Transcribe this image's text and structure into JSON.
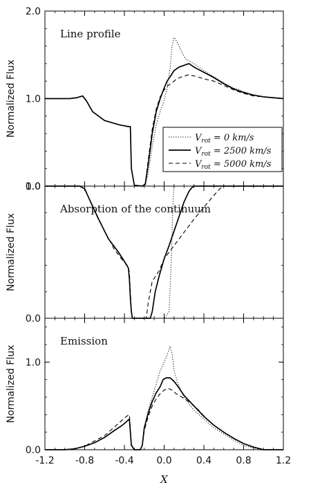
{
  "chart_data": [
    {
      "type": "line",
      "title": "Line profile",
      "xlabel": "",
      "ylabel": "Normalized Flux",
      "xlim": [
        -1.2,
        1.2
      ],
      "ylim": [
        0.0,
        2.0
      ],
      "yticks": [
        {
          "value": 0.0,
          "label": "0.0"
        },
        {
          "value": 1.0,
          "label": "1.0"
        },
        {
          "value": 2.0,
          "label": "2.0"
        }
      ],
      "xticks": [],
      "legend": {
        "placement": "center-right",
        "entries": [
          {
            "prefix": "V",
            "sub": "rot",
            "suffix": " = 0 km/s",
            "style": "dotted"
          },
          {
            "prefix": "V",
            "sub": "rot",
            "suffix": " = 2500 km/s",
            "style": "solid"
          },
          {
            "prefix": "V",
            "sub": "rot",
            "suffix": " = 5000 km/s",
            "style": "dashed"
          }
        ]
      },
      "series": [
        {
          "style": "dotted",
          "x": [
            -1.2,
            -0.95,
            -0.88,
            -0.82,
            -0.78,
            -0.72,
            -0.6,
            -0.45,
            -0.36,
            -0.34,
            -0.33,
            -0.3,
            -0.22,
            -0.19,
            -0.16,
            -0.12,
            -0.08,
            -0.04,
            0.0,
            0.03,
            0.06,
            0.08,
            0.1,
            0.14,
            0.18,
            0.22,
            0.3,
            0.4,
            0.5,
            0.6,
            0.7,
            0.8,
            0.9,
            1.0,
            1.1,
            1.2
          ],
          "y": [
            1.0,
            1.0,
            1.01,
            1.03,
            0.97,
            0.85,
            0.75,
            0.7,
            0.68,
            0.68,
            0.2,
            0.01,
            0.0,
            0.02,
            0.15,
            0.45,
            0.7,
            0.85,
            0.98,
            1.12,
            1.35,
            1.6,
            1.7,
            1.63,
            1.52,
            1.45,
            1.4,
            1.32,
            1.25,
            1.18,
            1.12,
            1.08,
            1.04,
            1.02,
            1.01,
            1.0
          ]
        },
        {
          "style": "solid",
          "x": [
            -1.2,
            -0.95,
            -0.88,
            -0.82,
            -0.78,
            -0.72,
            -0.6,
            -0.45,
            -0.36,
            -0.34,
            -0.33,
            -0.3,
            -0.22,
            -0.19,
            -0.16,
            -0.12,
            -0.08,
            -0.04,
            0.0,
            0.03,
            0.06,
            0.1,
            0.15,
            0.2,
            0.25,
            0.3,
            0.35,
            0.4,
            0.5,
            0.6,
            0.7,
            0.8,
            0.9,
            1.0,
            1.1,
            1.2
          ],
          "y": [
            1.0,
            1.0,
            1.01,
            1.03,
            0.97,
            0.85,
            0.75,
            0.7,
            0.68,
            0.68,
            0.2,
            0.01,
            0.0,
            0.02,
            0.25,
            0.6,
            0.85,
            1.0,
            1.12,
            1.2,
            1.25,
            1.32,
            1.36,
            1.38,
            1.4,
            1.36,
            1.33,
            1.3,
            1.24,
            1.17,
            1.11,
            1.07,
            1.04,
            1.02,
            1.01,
            1.0
          ]
        },
        {
          "style": "dashed",
          "x": [
            -1.2,
            -0.95,
            -0.88,
            -0.82,
            -0.78,
            -0.72,
            -0.6,
            -0.45,
            -0.36,
            -0.34,
            -0.33,
            -0.3,
            -0.22,
            -0.19,
            -0.16,
            -0.12,
            -0.08,
            -0.04,
            0.0,
            0.04,
            0.08,
            0.12,
            0.18,
            0.24,
            0.3,
            0.36,
            0.42,
            0.5,
            0.6,
            0.7,
            0.8,
            0.9,
            1.0,
            1.1,
            1.2
          ],
          "y": [
            1.0,
            1.0,
            1.01,
            1.03,
            0.97,
            0.85,
            0.75,
            0.7,
            0.68,
            0.68,
            0.2,
            0.01,
            0.0,
            0.03,
            0.3,
            0.65,
            0.88,
            1.02,
            1.1,
            1.15,
            1.18,
            1.22,
            1.25,
            1.27,
            1.26,
            1.24,
            1.22,
            1.2,
            1.15,
            1.1,
            1.06,
            1.03,
            1.02,
            1.01,
            1.0
          ]
        }
      ]
    },
    {
      "type": "line",
      "title": "Absorption of the continuum",
      "xlabel": "",
      "ylabel": "Normalized Flux",
      "xlim": [
        -1.2,
        1.2
      ],
      "ylim": [
        0.0,
        1.0
      ],
      "yticks": [
        {
          "value": 0.0,
          "label": "0.0"
        },
        {
          "value": 1.0,
          "label": "1.0"
        }
      ],
      "xticks": [],
      "series": [
        {
          "style": "dotted",
          "x": [
            -1.2,
            -0.85,
            -0.8,
            -0.74,
            -0.66,
            -0.56,
            -0.46,
            -0.4,
            -0.36,
            -0.35,
            -0.34,
            -0.33,
            -0.32,
            -0.1,
            -0.08,
            0.0,
            0.05,
            0.07,
            0.09,
            0.1,
            1.2
          ],
          "y": [
            1.0,
            1.0,
            0.98,
            0.88,
            0.75,
            0.6,
            0.5,
            0.43,
            0.38,
            0.3,
            0.15,
            0.05,
            0.0,
            0.0,
            0.0,
            0.0,
            0.05,
            0.4,
            0.9,
            1.0,
            1.0
          ]
        },
        {
          "style": "solid",
          "x": [
            -1.2,
            -0.85,
            -0.8,
            -0.74,
            -0.66,
            -0.56,
            -0.46,
            -0.4,
            -0.36,
            -0.35,
            -0.34,
            -0.33,
            -0.32,
            -0.14,
            -0.12,
            -0.09,
            -0.05,
            0.0,
            0.05,
            0.1,
            0.15,
            0.2,
            0.25,
            0.28,
            0.3,
            1.2
          ],
          "y": [
            1.0,
            1.0,
            0.98,
            0.88,
            0.75,
            0.6,
            0.5,
            0.43,
            0.38,
            0.3,
            0.15,
            0.05,
            0.0,
            0.0,
            0.05,
            0.2,
            0.32,
            0.45,
            0.55,
            0.66,
            0.77,
            0.88,
            0.96,
            0.99,
            1.0,
            1.0
          ]
        },
        {
          "style": "dashed",
          "x": [
            -1.2,
            -0.85,
            -0.8,
            -0.72,
            -0.6,
            -0.5,
            -0.42,
            -0.37,
            -0.35,
            -0.34,
            -0.33,
            -0.32,
            -0.18,
            -0.16,
            -0.12,
            -0.05,
            0.0,
            0.05,
            0.12,
            0.2,
            0.3,
            0.4,
            0.5,
            0.56,
            0.58,
            0.6,
            1.2
          ],
          "y": [
            1.0,
            1.0,
            0.98,
            0.85,
            0.66,
            0.52,
            0.44,
            0.4,
            0.35,
            0.2,
            0.06,
            0.0,
            0.0,
            0.12,
            0.28,
            0.36,
            0.45,
            0.5,
            0.57,
            0.65,
            0.75,
            0.84,
            0.93,
            0.98,
            0.99,
            1.0,
            1.0
          ]
        }
      ]
    },
    {
      "type": "line",
      "title": "Emission",
      "xlabel": "X",
      "ylabel": "Normalized Flux",
      "xlim": [
        -1.2,
        1.2
      ],
      "ylim": [
        0.0,
        1.5
      ],
      "yticks": [
        {
          "value": 0.0,
          "label": "0.0"
        },
        {
          "value": 1.0,
          "label": "1.0"
        }
      ],
      "xticks": [
        {
          "value": -1.2,
          "label": "-1.2"
        },
        {
          "value": -0.8,
          "label": "-0.8"
        },
        {
          "value": -0.4,
          "label": "-0.4"
        },
        {
          "value": 0.0,
          "label": "0.0"
        },
        {
          "value": 0.4,
          "label": "0.4"
        },
        {
          "value": 0.8,
          "label": "0.8"
        },
        {
          "value": 1.2,
          "label": "1.2"
        }
      ],
      "series": [
        {
          "style": "dotted",
          "x": [
            -1.2,
            -1.0,
            -0.9,
            -0.8,
            -0.7,
            -0.6,
            -0.5,
            -0.42,
            -0.38,
            -0.35,
            -0.34,
            -0.33,
            -0.3,
            -0.24,
            -0.22,
            -0.2,
            -0.16,
            -0.12,
            -0.08,
            -0.04,
            0.0,
            0.03,
            0.06,
            0.08,
            0.1,
            0.14,
            0.2,
            0.3,
            0.4,
            0.5,
            0.6,
            0.7,
            0.8,
            0.9,
            1.0,
            1.2
          ],
          "y": [
            0.0,
            0.0,
            0.01,
            0.04,
            0.08,
            0.14,
            0.22,
            0.28,
            0.32,
            0.35,
            0.2,
            0.05,
            0.0,
            0.0,
            0.05,
            0.25,
            0.45,
            0.6,
            0.75,
            0.9,
            1.0,
            1.08,
            1.18,
            1.1,
            0.9,
            0.75,
            0.6,
            0.45,
            0.35,
            0.25,
            0.18,
            0.11,
            0.05,
            0.02,
            0.0,
            0.0
          ]
        },
        {
          "style": "solid",
          "x": [
            -1.2,
            -1.0,
            -0.9,
            -0.8,
            -0.7,
            -0.6,
            -0.5,
            -0.42,
            -0.38,
            -0.35,
            -0.34,
            -0.33,
            -0.3,
            -0.24,
            -0.22,
            -0.2,
            -0.16,
            -0.12,
            -0.08,
            -0.04,
            -0.01,
            0.02,
            0.06,
            0.1,
            0.14,
            0.2,
            0.3,
            0.4,
            0.5,
            0.6,
            0.7,
            0.8,
            0.9,
            1.0,
            1.2
          ],
          "y": [
            0.0,
            0.0,
            0.01,
            0.04,
            0.08,
            0.14,
            0.22,
            0.28,
            0.32,
            0.35,
            0.2,
            0.05,
            0.0,
            0.0,
            0.05,
            0.25,
            0.42,
            0.55,
            0.65,
            0.72,
            0.8,
            0.82,
            0.82,
            0.78,
            0.72,
            0.62,
            0.5,
            0.38,
            0.28,
            0.2,
            0.13,
            0.07,
            0.03,
            0.0,
            0.0
          ]
        },
        {
          "style": "dashed",
          "x": [
            -1.2,
            -1.0,
            -0.9,
            -0.8,
            -0.7,
            -0.6,
            -0.5,
            -0.42,
            -0.38,
            -0.35,
            -0.34,
            -0.33,
            -0.3,
            -0.24,
            -0.22,
            -0.2,
            -0.16,
            -0.12,
            -0.08,
            -0.04,
            0.0,
            0.04,
            0.08,
            0.12,
            0.18,
            0.26,
            0.34,
            0.42,
            0.5,
            0.6,
            0.7,
            0.8,
            0.9,
            1.0,
            1.2
          ],
          "y": [
            0.0,
            0.0,
            0.01,
            0.04,
            0.1,
            0.16,
            0.26,
            0.34,
            0.38,
            0.4,
            0.24,
            0.06,
            0.0,
            0.0,
            0.05,
            0.22,
            0.38,
            0.5,
            0.58,
            0.64,
            0.68,
            0.7,
            0.68,
            0.64,
            0.6,
            0.54,
            0.46,
            0.36,
            0.28,
            0.2,
            0.13,
            0.07,
            0.03,
            0.0,
            0.0
          ]
        }
      ]
    }
  ]
}
